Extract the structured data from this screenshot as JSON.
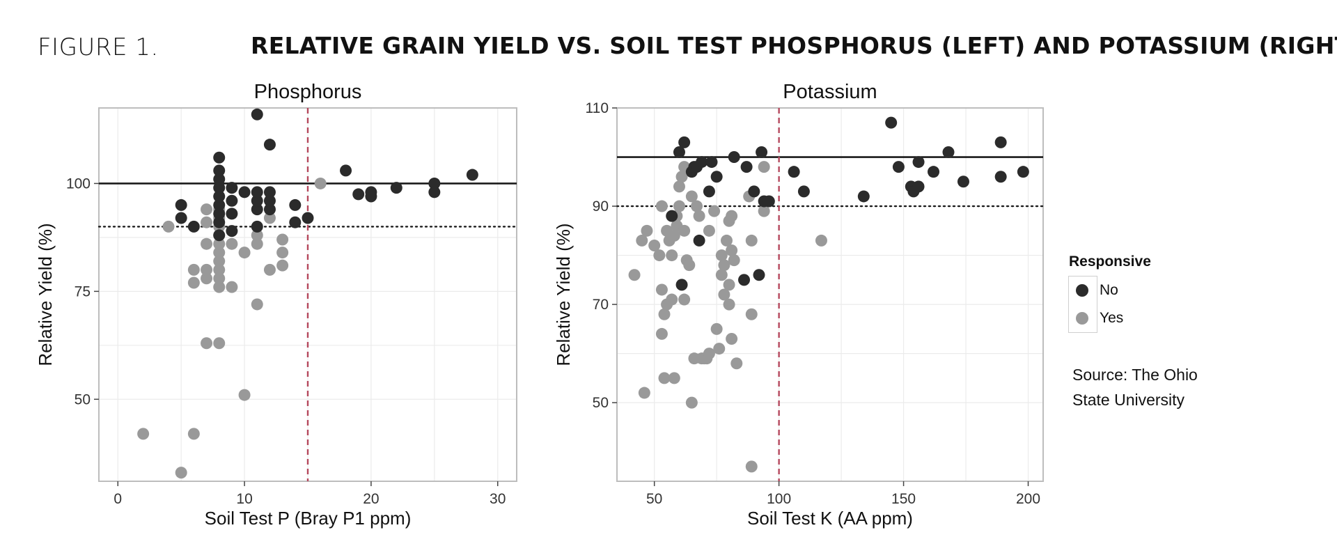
{
  "header": {
    "label": "FIGURE 1.",
    "title": "RELATIVE GRAIN YIELD VS. SOIL TEST PHOSPHORUS (LEFT) AND POTASSIUM (RIGHT)"
  },
  "legend": {
    "title": "Responsive",
    "items": [
      {
        "label": "No",
        "color": "#2b2b2b"
      },
      {
        "label": "Yes",
        "color": "#999999"
      }
    ]
  },
  "source": {
    "line1": "Source: The Ohio",
    "line2": "State University"
  },
  "colors": {
    "no": "#2b2b2b",
    "yes": "#999999",
    "critical_line": "#b5485d",
    "grid": "#ebebeb",
    "frame": "#bdbdbd"
  },
  "chart_data": [
    {
      "type": "scatter",
      "title": "Phosphorus",
      "xlabel": "Soil Test P (Bray P1 ppm)",
      "ylabel": "Relative Yield (%)",
      "xlim": [
        -1.5,
        31.5
      ],
      "ylim": [
        31,
        117.5
      ],
      "xticks": [
        0,
        10,
        20,
        30
      ],
      "yticks": [
        50,
        75,
        100
      ],
      "grid": true,
      "reference_lines": {
        "horizontal_solid": 100,
        "horizontal_dotted": 90,
        "vertical_dashed": 15
      },
      "series": [
        {
          "name": "Yes",
          "color": "#999999",
          "points": [
            [
              2,
              42
            ],
            [
              4,
              90
            ],
            [
              5,
              33
            ],
            [
              6,
              42
            ],
            [
              6,
              77
            ],
            [
              6,
              80
            ],
            [
              7,
              63
            ],
            [
              7,
              78
            ],
            [
              7,
              80
            ],
            [
              7,
              86
            ],
            [
              7,
              91
            ],
            [
              7,
              94
            ],
            [
              8,
              63
            ],
            [
              8,
              76
            ],
            [
              8,
              78
            ],
            [
              8,
              80
            ],
            [
              8,
              82
            ],
            [
              8,
              84
            ],
            [
              8,
              86
            ],
            [
              8,
              88
            ],
            [
              8,
              90
            ],
            [
              8,
              92
            ],
            [
              8,
              94
            ],
            [
              9,
              76
            ],
            [
              9,
              86
            ],
            [
              10,
              51
            ],
            [
              10,
              84
            ],
            [
              11,
              72
            ],
            [
              11,
              86
            ],
            [
              11,
              88
            ],
            [
              12,
              80
            ],
            [
              12,
              92
            ],
            [
              13,
              81
            ],
            [
              13,
              84
            ],
            [
              13,
              87
            ],
            [
              16,
              100
            ]
          ]
        },
        {
          "name": "No",
          "color": "#2b2b2b",
          "points": [
            [
              5,
              92
            ],
            [
              5,
              95
            ],
            [
              6,
              90
            ],
            [
              8,
              88
            ],
            [
              8,
              91
            ],
            [
              8,
              93
            ],
            [
              8,
              95
            ],
            [
              8,
              97
            ],
            [
              8,
              99
            ],
            [
              8,
              101
            ],
            [
              8,
              103
            ],
            [
              8,
              106
            ],
            [
              9,
              89
            ],
            [
              9,
              93
            ],
            [
              9,
              96
            ],
            [
              9,
              99
            ],
            [
              10,
              98
            ],
            [
              11,
              90
            ],
            [
              11,
              94
            ],
            [
              11,
              96
            ],
            [
              11,
              98
            ],
            [
              11,
              116
            ],
            [
              12,
              94
            ],
            [
              12,
              96
            ],
            [
              12,
              98
            ],
            [
              12,
              109
            ],
            [
              14,
              91
            ],
            [
              14,
              95
            ],
            [
              15,
              92
            ],
            [
              18,
              103
            ],
            [
              19,
              97.5
            ],
            [
              20,
              97
            ],
            [
              20,
              98
            ],
            [
              22,
              99
            ],
            [
              25,
              98
            ],
            [
              25,
              100
            ],
            [
              28,
              102
            ]
          ]
        }
      ]
    },
    {
      "type": "scatter",
      "title": "Potassium",
      "xlabel": "Soil Test K (AA ppm)",
      "ylabel": "Relative Yield (%)",
      "xlim": [
        35,
        206
      ],
      "ylim": [
        34,
        110
      ],
      "xticks": [
        50,
        100,
        150,
        200
      ],
      "yticks": [
        50,
        70,
        90,
        110
      ],
      "grid": true,
      "reference_lines": {
        "horizontal_solid": 100,
        "horizontal_dotted": 90,
        "vertical_dashed": 100
      },
      "series": [
        {
          "name": "Yes",
          "color": "#999999",
          "points": [
            [
              42,
              76
            ],
            [
              45,
              83
            ],
            [
              46,
              52
            ],
            [
              47,
              85
            ],
            [
              50,
              82
            ],
            [
              52,
              80
            ],
            [
              53,
              64
            ],
            [
              53,
              73
            ],
            [
              53,
              90
            ],
            [
              54,
              55
            ],
            [
              54,
              68
            ],
            [
              55,
              70
            ],
            [
              55,
              85
            ],
            [
              56,
              83
            ],
            [
              57,
              71
            ],
            [
              57,
              80
            ],
            [
              58,
              55
            ],
            [
              58,
              84
            ],
            [
              59,
              86
            ],
            [
              59,
              88
            ],
            [
              60,
              90
            ],
            [
              60,
              94
            ],
            [
              61,
              96
            ],
            [
              62,
              71
            ],
            [
              62,
              85
            ],
            [
              62,
              98
            ],
            [
              63,
              79
            ],
            [
              64,
              78
            ],
            [
              65,
              50
            ],
            [
              65,
              92
            ],
            [
              66,
              59
            ],
            [
              67,
              90
            ],
            [
              68,
              88
            ],
            [
              69,
              59
            ],
            [
              70,
              59
            ],
            [
              71,
              59
            ],
            [
              72,
              60
            ],
            [
              72,
              85
            ],
            [
              74,
              89
            ],
            [
              75,
              65
            ],
            [
              76,
              61
            ],
            [
              77,
              76
            ],
            [
              77,
              80
            ],
            [
              78,
              78
            ],
            [
              78,
              72
            ],
            [
              79,
              83
            ],
            [
              80,
              70
            ],
            [
              80,
              74
            ],
            [
              80,
              87
            ],
            [
              81,
              63
            ],
            [
              81,
              81
            ],
            [
              81,
              88
            ],
            [
              82,
              79
            ],
            [
              83,
              58
            ],
            [
              88,
              92
            ],
            [
              89,
              83
            ],
            [
              89,
              68
            ],
            [
              89,
              37
            ],
            [
              94,
              89
            ],
            [
              94,
              98
            ],
            [
              117,
              83
            ]
          ]
        },
        {
          "name": "No",
          "color": "#2b2b2b",
          "points": [
            [
              57,
              88
            ],
            [
              60,
              101
            ],
            [
              61,
              74
            ],
            [
              62,
              103
            ],
            [
              65,
              97
            ],
            [
              66,
              98
            ],
            [
              67,
              98
            ],
            [
              68,
              83
            ],
            [
              69,
              99
            ],
            [
              72,
              93
            ],
            [
              73,
              99
            ],
            [
              75,
              96
            ],
            [
              82,
              100
            ],
            [
              86,
              75
            ],
            [
              87,
              98
            ],
            [
              90,
              93
            ],
            [
              92,
              76
            ],
            [
              93,
              101
            ],
            [
              94,
              91
            ],
            [
              96,
              91
            ],
            [
              106,
              97
            ],
            [
              110,
              93
            ],
            [
              134,
              92
            ],
            [
              145,
              107
            ],
            [
              148,
              98
            ],
            [
              153,
              94
            ],
            [
              154,
              93
            ],
            [
              156,
              94
            ],
            [
              156,
              99
            ],
            [
              162,
              97
            ],
            [
              168,
              101
            ],
            [
              174,
              95
            ],
            [
              189,
              96
            ],
            [
              189,
              103
            ],
            [
              198,
              97
            ]
          ]
        }
      ]
    }
  ]
}
